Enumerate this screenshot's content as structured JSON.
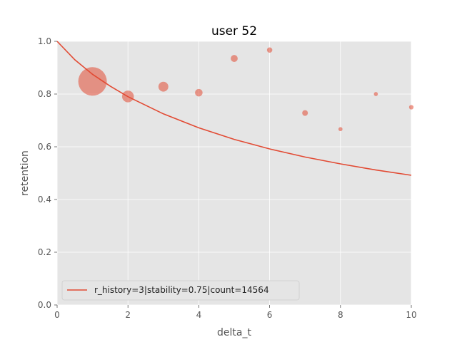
{
  "chart_data": {
    "type": "scatter",
    "title": "user 52",
    "xlabel": "delta_t",
    "ylabel": "retention",
    "xlim": [
      0,
      10
    ],
    "ylim": [
      0,
      1
    ],
    "xticks": [
      0,
      2,
      4,
      6,
      8,
      10
    ],
    "yticks": [
      0.0,
      0.2,
      0.4,
      0.6,
      0.8,
      1.0
    ],
    "xtick_labels": [
      "0",
      "2",
      "4",
      "6",
      "8",
      "10"
    ],
    "ytick_labels": [
      "0.0",
      "0.2",
      "0.4",
      "0.6",
      "0.8",
      "1.0"
    ],
    "grid": true,
    "legend_position": "lower-left",
    "colors": {
      "series": "#E24A33",
      "panel": "#E5E5E5",
      "grid": "#FFFFFF"
    },
    "points": [
      {
        "x": 1,
        "y": 0.848,
        "relative_size": 1.0
      },
      {
        "x": 2,
        "y": 0.791,
        "relative_size": 0.17
      },
      {
        "x": 3,
        "y": 0.828,
        "relative_size": 0.12
      },
      {
        "x": 4,
        "y": 0.805,
        "relative_size": 0.07
      },
      {
        "x": 5,
        "y": 0.935,
        "relative_size": 0.06
      },
      {
        "x": 6,
        "y": 0.967,
        "relative_size": 0.035
      },
      {
        "x": 7,
        "y": 0.728,
        "relative_size": 0.04
      },
      {
        "x": 8,
        "y": 0.667,
        "relative_size": 0.02
      },
      {
        "x": 9,
        "y": 0.8,
        "relative_size": 0.02
      },
      {
        "x": 10,
        "y": 0.75,
        "relative_size": 0.025
      }
    ],
    "curve": {
      "name": "r_history=3|stability=0.75|count=14564",
      "x": [
        0,
        0.5,
        1,
        1.5,
        2,
        3,
        4,
        5,
        6,
        7,
        8,
        9,
        10
      ],
      "y": [
        1.0,
        0.93,
        0.875,
        0.83,
        0.79,
        0.725,
        0.672,
        0.628,
        0.592,
        0.561,
        0.535,
        0.512,
        0.492
      ]
    }
  }
}
